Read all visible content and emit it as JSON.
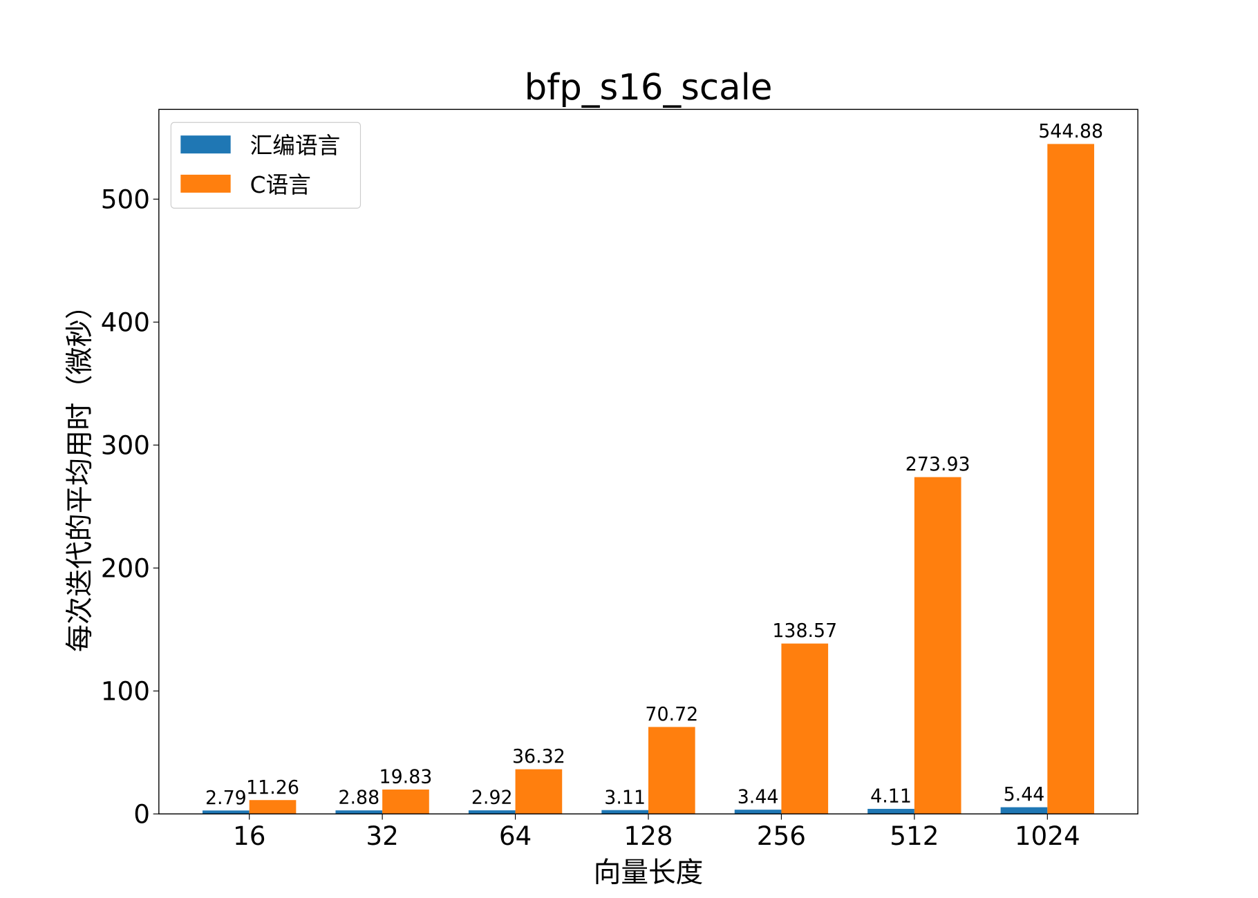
{
  "chart_data": {
    "type": "bar",
    "title": "bfp_s16_scale",
    "xlabel": "向量长度",
    "ylabel": "每次迭代的平均用时（微秒）",
    "categories": [
      "16",
      "32",
      "64",
      "128",
      "256",
      "512",
      "1024"
    ],
    "series": [
      {
        "name": "汇编语言",
        "color": "#1f77b4",
        "values": [
          2.79,
          2.88,
          2.92,
          3.11,
          3.44,
          4.11,
          5.44
        ],
        "labels": [
          "2.79",
          "2.88",
          "2.92",
          "3.11",
          "3.44",
          "4.11",
          "5.44"
        ]
      },
      {
        "name": "C语言",
        "color": "#ff7f0e",
        "values": [
          11.26,
          19.83,
          36.32,
          70.72,
          138.57,
          273.93,
          544.88
        ],
        "labels": [
          "11.26",
          "19.83",
          "36.32",
          "70.72",
          "138.57",
          "273.93",
          "544.88"
        ]
      }
    ],
    "ylim": [
      0,
      573
    ],
    "yticks": [
      0,
      100,
      200,
      300,
      400,
      500
    ],
    "grid": false,
    "legend": "top-left"
  }
}
